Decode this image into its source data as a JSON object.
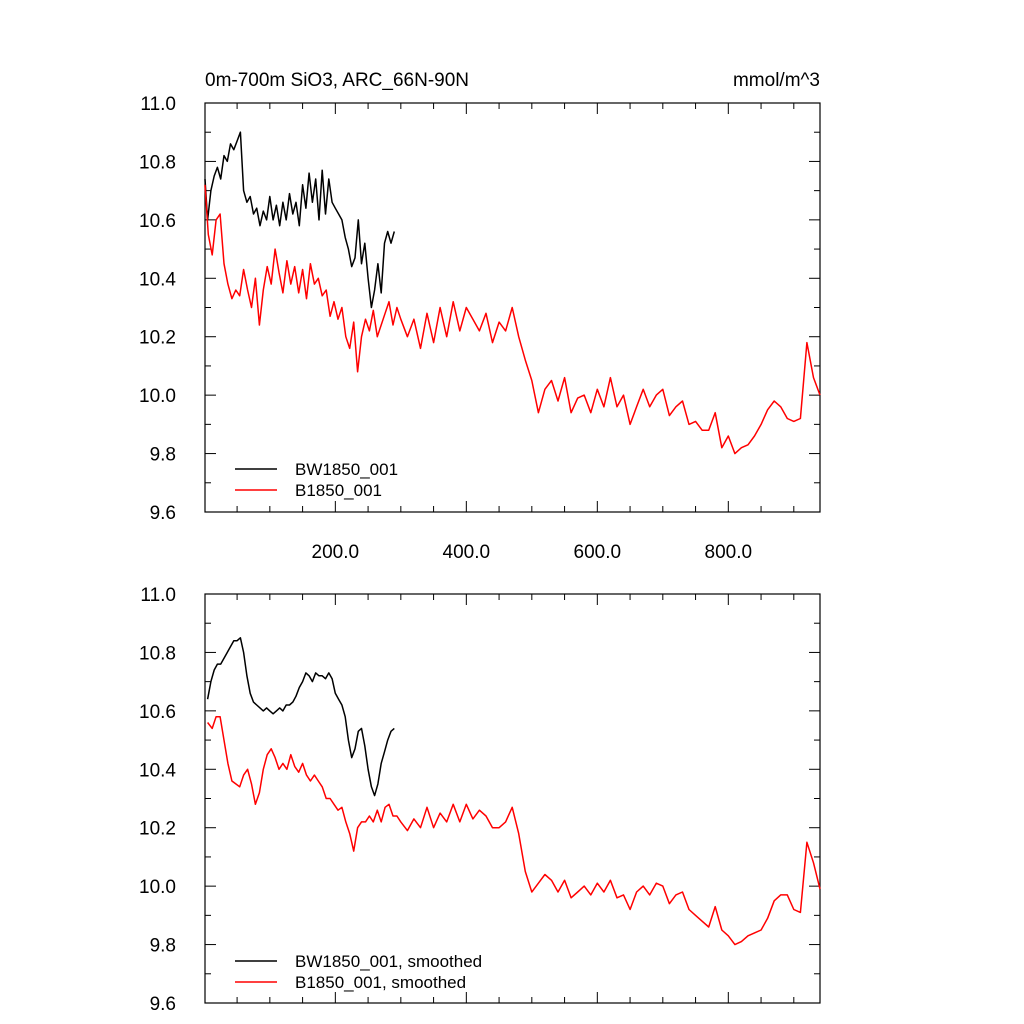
{
  "figure": {
    "title_left": "0m-700m SiO3, ARC_66N-90N",
    "title_right": "mmol/m^3"
  },
  "chart_data": [
    {
      "type": "line",
      "title": "0m-700m SiO3, ARC_66N-90N",
      "units": "mmol/m^3",
      "xlim": [
        1,
        940
      ],
      "ylim": [
        9.6,
        11.0
      ],
      "x_ticks": [
        200,
        400,
        600,
        800
      ],
      "x_tick_labels": [
        "200.0",
        "400.0",
        "600.0",
        "800.0"
      ],
      "y_ticks": [
        9.6,
        9.8,
        10.0,
        10.2,
        10.4,
        10.6,
        10.8,
        11.0
      ],
      "y_tick_labels": [
        "9.6",
        "9.8",
        "10.0",
        "10.2",
        "10.4",
        "10.6",
        "10.8",
        "11.0"
      ],
      "legend_position": "bottom-left",
      "series": [
        {
          "name": "BW1850_001",
          "color": "#000000",
          "x": [
            1,
            5,
            10,
            15,
            20,
            25,
            30,
            35,
            40,
            45,
            50,
            55,
            60,
            65,
            70,
            75,
            80,
            85,
            90,
            95,
            100,
            105,
            110,
            115,
            120,
            125,
            130,
            135,
            140,
            145,
            150,
            155,
            160,
            165,
            170,
            175,
            180,
            185,
            190,
            195,
            200,
            205,
            210,
            215,
            220,
            225,
            230,
            235,
            240,
            245,
            250,
            255,
            260,
            265,
            270,
            275,
            280,
            285,
            290
          ],
          "y": [
            10.74,
            10.6,
            10.7,
            10.75,
            10.78,
            10.74,
            10.82,
            10.8,
            10.86,
            10.84,
            10.87,
            10.9,
            10.7,
            10.66,
            10.68,
            10.62,
            10.64,
            10.58,
            10.63,
            10.6,
            10.68,
            10.6,
            10.65,
            10.58,
            10.66,
            10.6,
            10.69,
            10.62,
            10.66,
            10.58,
            10.72,
            10.64,
            10.76,
            10.66,
            10.74,
            10.6,
            10.77,
            10.62,
            10.74,
            10.66,
            10.64,
            10.62,
            10.6,
            10.54,
            10.5,
            10.44,
            10.47,
            10.6,
            10.45,
            10.52,
            10.4,
            10.3,
            10.36,
            10.45,
            10.35,
            10.52,
            10.56,
            10.52,
            10.56
          ]
        },
        {
          "name": "B1850_001",
          "color": "#ff0000",
          "x": [
            1,
            6,
            12,
            18,
            24,
            30,
            36,
            42,
            48,
            54,
            60,
            66,
            72,
            78,
            84,
            90,
            96,
            102,
            108,
            114,
            120,
            126,
            132,
            138,
            144,
            150,
            156,
            162,
            168,
            174,
            180,
            186,
            192,
            198,
            204,
            210,
            216,
            222,
            228,
            234,
            240,
            246,
            252,
            258,
            264,
            270,
            276,
            282,
            288,
            294,
            300,
            310,
            320,
            330,
            340,
            350,
            360,
            370,
            380,
            390,
            400,
            410,
            420,
            430,
            440,
            450,
            460,
            470,
            480,
            490,
            500,
            510,
            520,
            530,
            540,
            550,
            560,
            570,
            580,
            590,
            600,
            610,
            620,
            630,
            640,
            650,
            660,
            670,
            680,
            690,
            700,
            710,
            720,
            730,
            740,
            750,
            760,
            770,
            780,
            790,
            800,
            810,
            820,
            830,
            840,
            850,
            860,
            870,
            880,
            890,
            900,
            910,
            920,
            930,
            940
          ],
          "y": [
            10.72,
            10.55,
            10.48,
            10.6,
            10.62,
            10.45,
            10.38,
            10.33,
            10.36,
            10.34,
            10.43,
            10.36,
            10.3,
            10.4,
            10.24,
            10.36,
            10.44,
            10.38,
            10.5,
            10.42,
            10.35,
            10.46,
            10.38,
            10.44,
            10.35,
            10.43,
            10.33,
            10.45,
            10.38,
            10.4,
            10.34,
            10.36,
            10.27,
            10.32,
            10.26,
            10.3,
            10.2,
            10.16,
            10.25,
            10.08,
            10.2,
            10.26,
            10.22,
            10.29,
            10.2,
            10.24,
            10.28,
            10.32,
            10.24,
            10.3,
            10.26,
            10.2,
            10.26,
            10.16,
            10.28,
            10.18,
            10.3,
            10.2,
            10.32,
            10.22,
            10.3,
            10.26,
            10.22,
            10.28,
            10.18,
            10.25,
            10.22,
            10.3,
            10.2,
            10.12,
            10.05,
            9.94,
            10.02,
            10.05,
            9.98,
            10.06,
            9.94,
            9.99,
            10.0,
            9.94,
            10.02,
            9.96,
            10.06,
            9.96,
            10.0,
            9.9,
            9.96,
            10.02,
            9.96,
            10.0,
            10.02,
            9.93,
            9.96,
            9.98,
            9.9,
            9.91,
            9.88,
            9.88,
            9.94,
            9.82,
            9.86,
            9.8,
            9.82,
            9.83,
            9.86,
            9.9,
            9.95,
            9.98,
            9.96,
            9.92,
            9.91,
            9.92,
            10.18,
            10.06,
            10.0
          ]
        }
      ]
    },
    {
      "type": "line",
      "xlim": [
        1,
        940
      ],
      "ylim": [
        9.6,
        11.0
      ],
      "y_ticks": [
        9.6,
        9.8,
        10.0,
        10.2,
        10.4,
        10.6,
        10.8,
        11.0
      ],
      "y_tick_labels": [
        "9.6",
        "9.8",
        "10.0",
        "10.2",
        "10.4",
        "10.6",
        "10.8",
        "11.0"
      ],
      "legend_position": "bottom-left",
      "series": [
        {
          "name": "BW1850_001, smoothed",
          "color": "#000000",
          "x": [
            5,
            10,
            15,
            20,
            25,
            30,
            35,
            40,
            45,
            50,
            55,
            60,
            65,
            70,
            75,
            80,
            85,
            90,
            95,
            100,
            105,
            110,
            115,
            120,
            125,
            130,
            135,
            140,
            145,
            150,
            155,
            160,
            165,
            170,
            175,
            180,
            185,
            190,
            195,
            200,
            205,
            210,
            215,
            220,
            225,
            230,
            235,
            240,
            245,
            250,
            255,
            260,
            265,
            270,
            275,
            280,
            285,
            290
          ],
          "y": [
            10.64,
            10.7,
            10.74,
            10.76,
            10.76,
            10.78,
            10.8,
            10.82,
            10.84,
            10.84,
            10.85,
            10.8,
            10.72,
            10.66,
            10.63,
            10.62,
            10.61,
            10.6,
            10.61,
            10.6,
            10.59,
            10.6,
            10.61,
            10.6,
            10.62,
            10.62,
            10.63,
            10.65,
            10.68,
            10.7,
            10.73,
            10.72,
            10.7,
            10.73,
            10.72,
            10.72,
            10.71,
            10.73,
            10.71,
            10.66,
            10.64,
            10.62,
            10.58,
            10.5,
            10.44,
            10.47,
            10.53,
            10.54,
            10.48,
            10.4,
            10.34,
            10.31,
            10.35,
            10.42,
            10.46,
            10.5,
            10.53,
            10.54
          ]
        },
        {
          "name": "B1850_001, smoothed",
          "color": "#ff0000",
          "x": [
            5,
            12,
            18,
            24,
            30,
            36,
            42,
            48,
            54,
            60,
            66,
            72,
            78,
            84,
            90,
            96,
            102,
            108,
            114,
            120,
            126,
            132,
            138,
            144,
            150,
            156,
            162,
            168,
            174,
            180,
            186,
            192,
            198,
            204,
            210,
            216,
            222,
            228,
            234,
            240,
            246,
            252,
            258,
            264,
            270,
            276,
            282,
            288,
            294,
            300,
            310,
            320,
            330,
            340,
            350,
            360,
            370,
            380,
            390,
            400,
            410,
            420,
            430,
            440,
            450,
            460,
            470,
            480,
            490,
            500,
            510,
            520,
            530,
            540,
            550,
            560,
            570,
            580,
            590,
            600,
            610,
            620,
            630,
            640,
            650,
            660,
            670,
            680,
            690,
            700,
            710,
            720,
            730,
            740,
            750,
            760,
            770,
            780,
            790,
            800,
            810,
            820,
            830,
            840,
            850,
            860,
            870,
            880,
            890,
            900,
            910,
            920,
            930,
            940
          ],
          "y": [
            10.56,
            10.54,
            10.58,
            10.58,
            10.5,
            10.42,
            10.36,
            10.35,
            10.34,
            10.38,
            10.4,
            10.35,
            10.28,
            10.32,
            10.4,
            10.45,
            10.47,
            10.44,
            10.4,
            10.42,
            10.4,
            10.45,
            10.41,
            10.39,
            10.42,
            10.38,
            10.36,
            10.38,
            10.36,
            10.34,
            10.3,
            10.3,
            10.28,
            10.26,
            10.27,
            10.22,
            10.18,
            10.12,
            10.2,
            10.22,
            10.22,
            10.24,
            10.22,
            10.26,
            10.22,
            10.27,
            10.28,
            10.24,
            10.24,
            10.22,
            10.19,
            10.23,
            10.2,
            10.27,
            10.2,
            10.25,
            10.22,
            10.28,
            10.22,
            10.28,
            10.23,
            10.26,
            10.24,
            10.2,
            10.2,
            10.22,
            10.27,
            10.18,
            10.05,
            9.98,
            10.01,
            10.04,
            10.02,
            9.98,
            10.02,
            9.96,
            9.98,
            10.0,
            9.97,
            10.01,
            9.98,
            10.02,
            9.96,
            9.97,
            9.92,
            9.98,
            10.0,
            9.97,
            10.01,
            10.0,
            9.94,
            9.97,
            9.98,
            9.92,
            9.9,
            9.88,
            9.86,
            9.93,
            9.85,
            9.83,
            9.8,
            9.81,
            9.83,
            9.84,
            9.85,
            9.89,
            9.95,
            9.97,
            9.97,
            9.92,
            9.91,
            10.15,
            10.08,
            9.99
          ]
        }
      ]
    }
  ]
}
